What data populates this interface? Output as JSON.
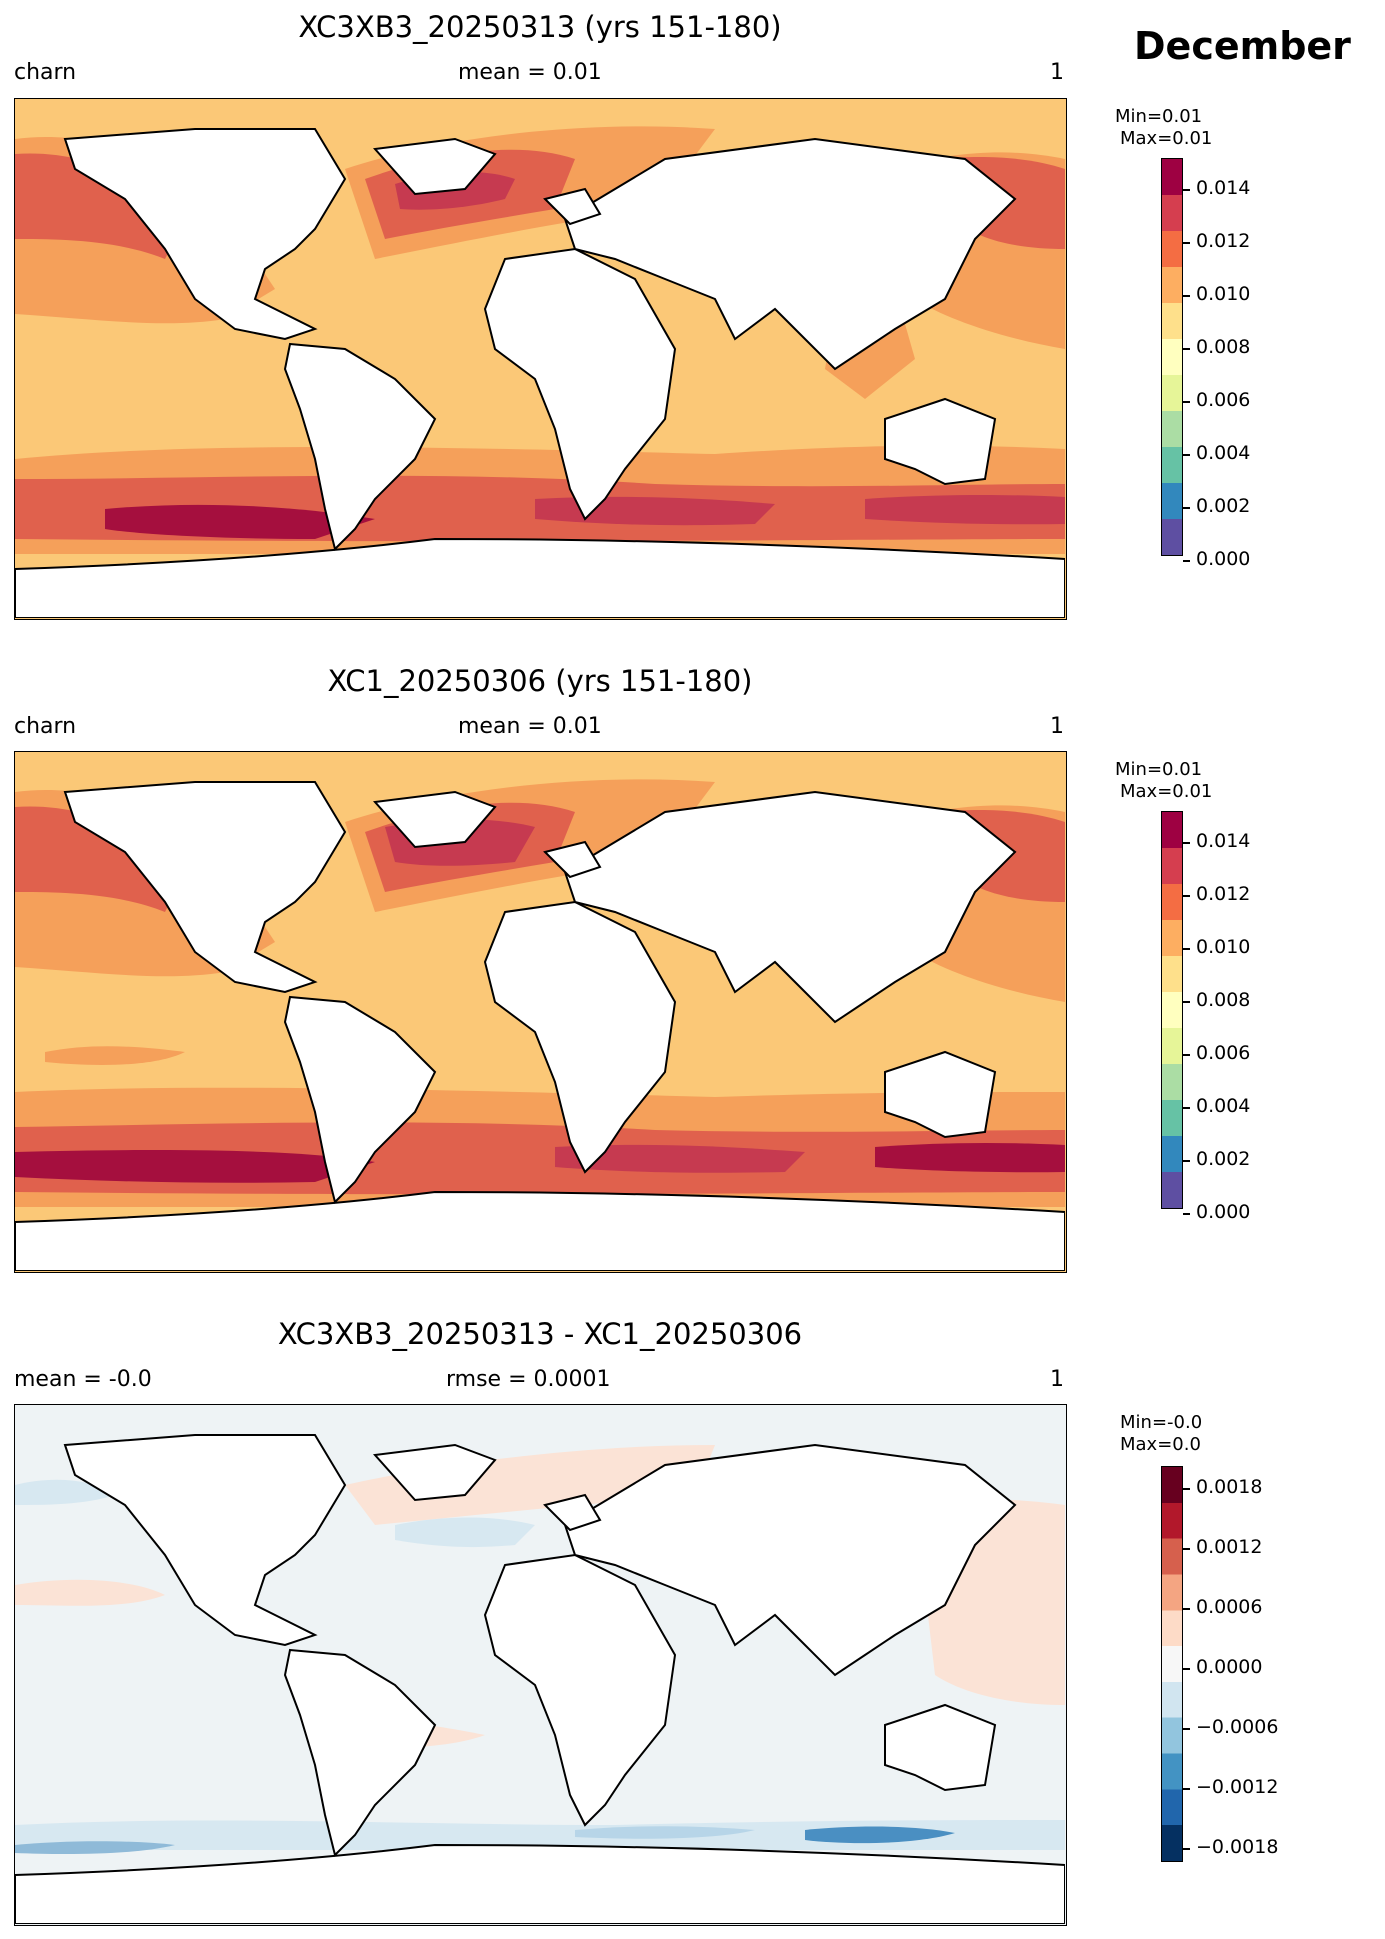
{
  "month": "December",
  "panels": [
    {
      "title": "XC3XB3_20250313 (yrs 151-180)",
      "left": "charn",
      "center": "mean = 0.01",
      "right": "1",
      "minmax": [
        "Min=0.01",
        "Max=0.01"
      ],
      "ticks": [
        "0.014",
        "0.012",
        "0.010",
        "0.008",
        "0.006",
        "0.004",
        "0.002",
        "0.000"
      ],
      "colors": [
        "#9e0142",
        "#d53e4f",
        "#f46d43",
        "#fdae61",
        "#fee08b",
        "#ffffbf",
        "#e6f598",
        "#abdda4",
        "#66c2a5",
        "#3288bd",
        "#5e4fa2"
      ]
    },
    {
      "title": "XC1_20250306 (yrs 151-180)",
      "left": "charn",
      "center": "mean = 0.01",
      "right": "1",
      "minmax": [
        "Min=0.01",
        "Max=0.01"
      ],
      "ticks": [
        "0.014",
        "0.012",
        "0.010",
        "0.008",
        "0.006",
        "0.004",
        "0.002",
        "0.000"
      ],
      "colors": [
        "#9e0142",
        "#d53e4f",
        "#f46d43",
        "#fdae61",
        "#fee08b",
        "#ffffbf",
        "#e6f598",
        "#abdda4",
        "#66c2a5",
        "#3288bd",
        "#5e4fa2"
      ]
    },
    {
      "title": "XC3XB3_20250313 - XC1_20250306",
      "left": "mean = -0.0",
      "center": "rmse = 0.0001",
      "right": "1",
      "minmax": [
        "Min=-0.0",
        "Max=0.0"
      ],
      "ticks": [
        "0.0018",
        "0.0012",
        "0.0006",
        "0.0000",
        "−0.0006",
        "−0.0012",
        "−0.0018"
      ],
      "colors": [
        "#67001f",
        "#b2182b",
        "#d6604d",
        "#f4a582",
        "#fddbc7",
        "#f7f7f7",
        "#d1e5f0",
        "#92c5de",
        "#4393c3",
        "#2166ac",
        "#053061"
      ]
    }
  ]
}
